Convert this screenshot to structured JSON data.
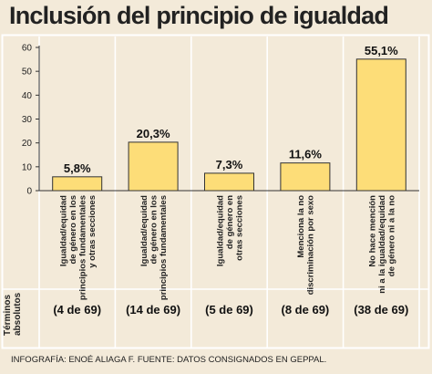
{
  "chart_data": {
    "type": "bar",
    "title": "Inclusión del principio de igualdad",
    "categories": [
      [
        "Igualdad/equidad",
        "de género en los",
        "principios fundamentales",
        "y otras secciones"
      ],
      [
        "Igualdad/equidad",
        "de género en los",
        "principios fundamentales"
      ],
      [
        "Igualdad/equidad",
        "de género en",
        "otras secciones"
      ],
      [
        "Menciona la no",
        "discriminación por sexo"
      ],
      [
        "No hace mención",
        "ni a la igualdad/equidad",
        "de género ni a la no"
      ]
    ],
    "values": [
      5.8,
      20.3,
      7.3,
      11.6,
      55.1
    ],
    "value_labels": [
      "5,8%",
      "20,3%",
      "7,3%",
      "11,6%",
      "55,1%"
    ],
    "absolute_labels": [
      "(4 de 69)",
      "(14 de 69)",
      "(5 de 69)",
      "(8 de 69)",
      "(38 de 69)"
    ],
    "y_ticks": [
      0,
      10,
      20,
      30,
      40,
      50,
      60
    ],
    "ylim": [
      0,
      60
    ],
    "grid": false,
    "bar_color": "#fddd78",
    "xlabel": "",
    "ylabel": ""
  },
  "row_label": [
    "Términos",
    "absolutos"
  ],
  "credit": "INFOGRAFÍA: ENOÉ ALIAGA F. FUENTE: DATOS CONSIGNADOS EN GEPPAL."
}
